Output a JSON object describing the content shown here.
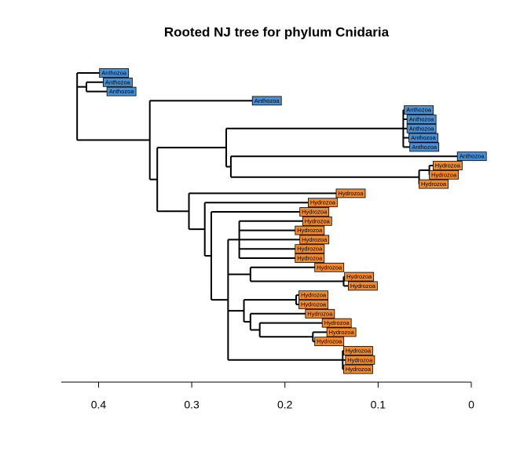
{
  "chart_data": {
    "type": "tree",
    "title": "Rooted NJ tree for phylum Cnidaria",
    "xlim": [
      0.44,
      0
    ],
    "xticks": [
      0.4,
      0.3,
      0.2,
      0.1,
      0
    ],
    "colors": {
      "Anthozoa": "#4a8fd2",
      "Hydrozoa": "#f08a2c"
    },
    "tree": {
      "x": 0.423,
      "children": [
        {
          "label": "Anthozoa",
          "x": 0.399
        },
        {
          "x": 0.413,
          "children": [
            {
              "label": "Anthozoa",
              "x": 0.395
            },
            {
              "label": "Anthozoa",
              "x": 0.391
            }
          ]
        },
        {
          "x": 0.345,
          "children": [
            {
              "label": "Anthozoa",
              "x": 0.235
            },
            {
              "x": 0.337,
              "children": [
                {
                  "x": 0.263,
                  "children": [
                    {
                      "x": 0.073,
                      "children": [
                        {
                          "label": "Anthozoa",
                          "x": 0.072
                        },
                        {
                          "label": "Anthozoa",
                          "x": 0.069
                        },
                        {
                          "label": "Anthozoa",
                          "x": 0.069
                        },
                        {
                          "label": "Anthozoa",
                          "x": 0.067
                        },
                        {
                          "label": "Anthozoa",
                          "x": 0.066
                        }
                      ]
                    },
                    {
                      "x": 0.258,
                      "children": [
                        {
                          "label": "Anthozoa",
                          "x": 0.015
                        },
                        {
                          "x": 0.056,
                          "children": [
                            {
                              "x": 0.045,
                              "children": [
                                {
                                  "label": "Hydrozoa",
                                  "x": 0.041
                                },
                                {
                                  "label": "Hydrozoa",
                                  "x": 0.045
                                }
                              ]
                            },
                            {
                              "label": "Hydrozoa",
                              "x": 0.056
                            }
                          ]
                        }
                      ]
                    }
                  ]
                },
                {
                  "x": 0.303,
                  "children": [
                    {
                      "label": "Hydrozoa",
                      "x": 0.145
                    },
                    {
                      "x": 0.286,
                      "children": [
                        {
                          "label": "Hydrozoa",
                          "x": 0.175
                        },
                        {
                          "x": 0.279,
                          "children": [
                            {
                              "label": "Hydrozoa",
                              "x": 0.184
                            },
                            {
                              "x": 0.261,
                              "children": [
                                {
                                  "x": 0.249,
                                  "children": [
                                    {
                                      "label": "Hydrozoa",
                                      "x": 0.181
                                    },
                                    {
                                      "label": "Hydrozoa",
                                      "x": 0.189
                                    },
                                    {
                                      "label": "Hydrozoa",
                                      "x": 0.184
                                    },
                                    {
                                      "label": "Hydrozoa",
                                      "x": 0.189
                                    },
                                    {
                                      "label": "Hydrozoa",
                                      "x": 0.189
                                    }
                                  ]
                                },
                                {
                                  "x": 0.237,
                                  "children": [
                                    {
                                      "label": "Hydrozoa",
                                      "x": 0.168
                                    },
                                    {
                                      "x": 0.137,
                                      "children": [
                                        {
                                          "label": "Hydrozoa",
                                          "x": 0.136
                                        },
                                        {
                                          "label": "Hydrozoa",
                                          "x": 0.132
                                        }
                                      ]
                                    }
                                  ]
                                },
                                {
                                  "x": 0.244,
                                  "children": [
                                    {
                                      "x": 0.188,
                                      "children": [
                                        {
                                          "label": "Hydrozoa",
                                          "x": 0.185
                                        },
                                        {
                                          "label": "Hydrozoa",
                                          "x": 0.185
                                        }
                                      ]
                                    },
                                    {
                                      "x": 0.237,
                                      "children": [
                                        {
                                          "label": "Hydrozoa",
                                          "x": 0.178
                                        },
                                        {
                                          "x": 0.227,
                                          "children": [
                                            {
                                              "label": "Hydrozoa",
                                              "x": 0.16
                                            },
                                            {
                                              "x": 0.17,
                                              "children": [
                                                {
                                                  "label": "Hydrozoa",
                                                  "x": 0.155
                                                },
                                                {
                                                  "label": "Hydrozoa",
                                                  "x": 0.168
                                                }
                                              ]
                                            }
                                          ]
                                        }
                                      ]
                                    }
                                  ]
                                },
                                {
                                  "x": 0.138,
                                  "children": [
                                    {
                                      "label": "Hydrozoa",
                                      "x": 0.137
                                    },
                                    {
                                      "label": "Hydrozoa",
                                      "x": 0.135
                                    },
                                    {
                                      "label": "Hydrozoa",
                                      "x": 0.137
                                    }
                                  ]
                                }
                              ]
                            }
                          ]
                        }
                      ]
                    }
                  ]
                }
              ]
            }
          ]
        }
      ]
    }
  }
}
